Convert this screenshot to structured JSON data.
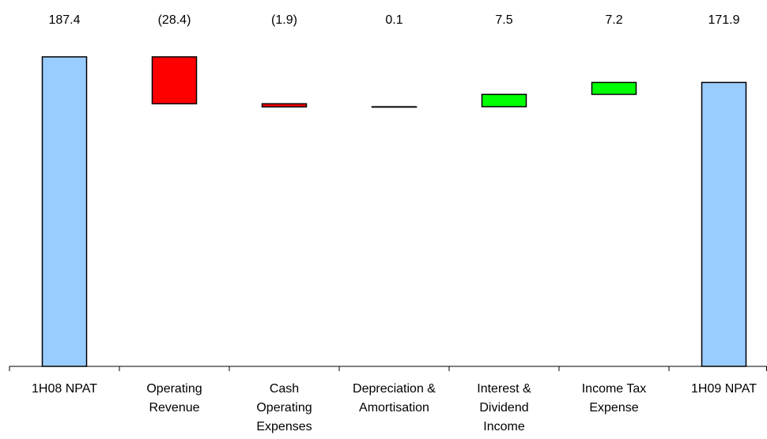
{
  "chart_data": {
    "type": "waterfall",
    "categories": [
      [
        "1H08 NPAT"
      ],
      [
        "Operating",
        "Revenue"
      ],
      [
        "Cash",
        "Operating",
        "Expenses"
      ],
      [
        "Depreciation &",
        "Amortisation"
      ],
      [
        "Interest &",
        "Dividend",
        "Income"
      ],
      [
        "Income Tax",
        "Expense"
      ],
      [
        "1H09 NPAT"
      ]
    ],
    "values": [
      187.4,
      -28.4,
      -1.9,
      0.1,
      7.5,
      7.2,
      171.9
    ],
    "value_labels": [
      "187.4",
      "(28.4)",
      "(1.9)",
      "0.1",
      "7.5",
      "7.2",
      "171.9"
    ],
    "totals": [
      true,
      false,
      false,
      false,
      false,
      false,
      true
    ],
    "colors": [
      "#99ccff",
      "#ff0000",
      "#ff0000",
      "#00ff00",
      "#00ff00",
      "#00ff00",
      "#99ccff"
    ]
  }
}
